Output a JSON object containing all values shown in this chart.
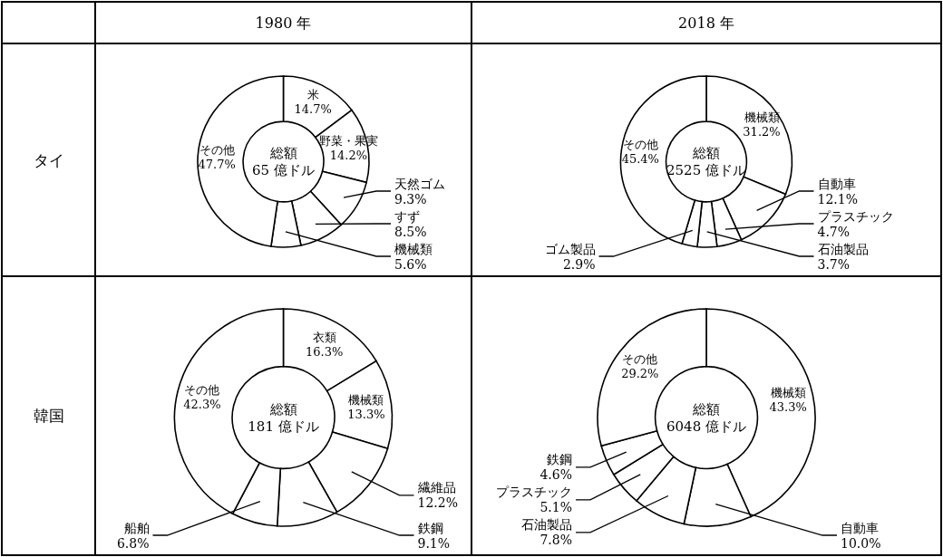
{
  "chart_data": [
    {
      "type": "donut",
      "title": "1980 年",
      "ylabel": "タイ",
      "categories": [
        "米",
        "野菜・果実",
        "天然ゴム",
        "すず",
        "機械類",
        "その他"
      ],
      "values": [
        14.7,
        14.2,
        9.3,
        8.5,
        5.6,
        47.7
      ],
      "value_labels": [
        "14.7%",
        "14.2%",
        "9.3%",
        "8.5%",
        "5.6%",
        "47.7%"
      ],
      "colors": [
        "#ffffff",
        "#ffffff",
        "#ffffff",
        "#ffffff",
        "#ffffff",
        "#ffffff"
      ],
      "annotations": [
        "総額",
        "65 億ドル"
      ]
    },
    {
      "type": "donut",
      "title": "2018 年",
      "categories": [
        "機械類",
        "自動車",
        "プラスチック",
        "石油製品",
        "ゴム製品",
        "その他"
      ],
      "values": [
        31.2,
        12.1,
        4.7,
        3.7,
        2.9,
        45.4
      ],
      "value_labels": [
        "31.2%",
        "12.1%",
        "4.7%",
        "3.7%",
        "2.9%",
        "45.4%"
      ],
      "colors": [
        "#ffffff",
        "#ffffff",
        "#ffffff",
        "#ffffff",
        "#ffffff",
        "#ffffff"
      ],
      "annotations": [
        "総額",
        "2525 億ドル"
      ]
    },
    {
      "type": "donut",
      "ylabel": "韓国",
      "categories": [
        "衣類",
        "機械類",
        "繊維品",
        "鉄鋼",
        "船舶",
        "その他"
      ],
      "values": [
        16.3,
        13.3,
        12.2,
        9.1,
        6.8,
        42.3
      ],
      "value_labels": [
        "16.3%",
        "13.3%",
        "12.2%",
        "9.1%",
        "6.8%",
        "42.3%"
      ],
      "colors": [
        "#ffffff",
        "#ffffff",
        "#ffffff",
        "#ffffff",
        "#ffffff",
        "#ffffff"
      ],
      "annotations": [
        "総額",
        "181 億ドル"
      ]
    },
    {
      "type": "donut",
      "categories": [
        "機械類",
        "自動車",
        "石油製品",
        "プラスチック",
        "鉄鋼",
        "その他"
      ],
      "values": [
        43.3,
        10.0,
        7.8,
        5.1,
        4.6,
        29.2
      ],
      "value_labels": [
        "43.3%",
        "10.0%",
        "7.8%",
        "5.1%",
        "4.6%",
        "29.2%"
      ],
      "colors": [
        "#ffffff",
        "#ffffff",
        "#ffffff",
        "#ffffff",
        "#ffffff",
        "#ffffff"
      ],
      "annotations": [
        "総額",
        "6048 億ドル"
      ]
    }
  ]
}
